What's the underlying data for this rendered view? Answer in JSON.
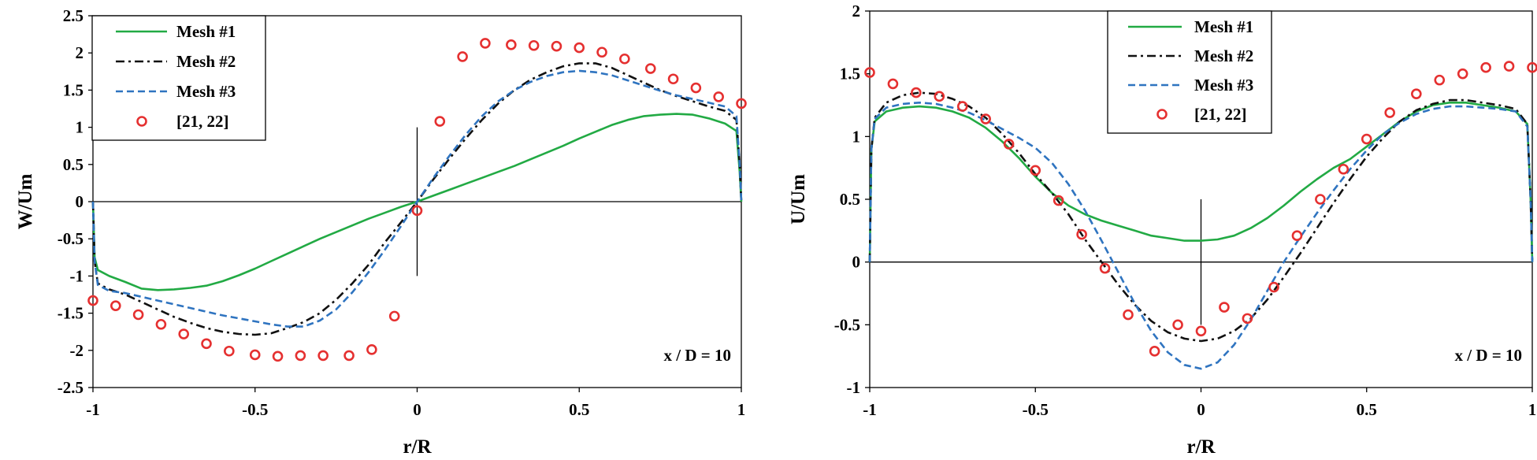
{
  "figure_colors": {
    "mesh1": "#22aa44",
    "mesh2": "#111111",
    "mesh3": "#2f74c0",
    "reference": "#e53030"
  },
  "chart_data": [
    {
      "type": "line",
      "title": "",
      "xlabel": "r/R",
      "ylabel": "W/Um",
      "xlim": [
        -1,
        1
      ],
      "ylim": [
        -2.5,
        2.5
      ],
      "xticks": [
        -1,
        -0.5,
        0,
        0.5,
        1
      ],
      "xtick_labels": [
        "-1",
        "-0.5",
        "0",
        "0.5",
        "1"
      ],
      "yticks": [
        -2.5,
        -2,
        -1.5,
        -1,
        -0.5,
        0,
        0.5,
        1,
        1.5,
        2,
        2.5
      ],
      "ytick_labels": [
        "-2.5",
        "-2",
        "-1.5",
        "-1",
        "-0.5",
        "0",
        "0.5",
        "1",
        "1.5",
        "2",
        "2.5"
      ],
      "legend_position": "top-left",
      "annotation": "x / D = 10",
      "grid": false,
      "series": [
        {
          "name": "Mesh #1",
          "style": "solid",
          "color_key": "mesh1",
          "x": [
            -1.0,
            -0.995,
            -0.985,
            -0.95,
            -0.9,
            -0.85,
            -0.8,
            -0.75,
            -0.7,
            -0.65,
            -0.6,
            -0.55,
            -0.5,
            -0.45,
            -0.4,
            -0.35,
            -0.3,
            -0.25,
            -0.2,
            -0.15,
            -0.1,
            -0.05,
            0.0,
            0.05,
            0.1,
            0.15,
            0.2,
            0.25,
            0.3,
            0.35,
            0.4,
            0.45,
            0.5,
            0.55,
            0.6,
            0.65,
            0.7,
            0.75,
            0.8,
            0.85,
            0.9,
            0.95,
            0.985,
            0.995,
            1.0
          ],
          "y": [
            0.0,
            -0.75,
            -0.92,
            -1.0,
            -1.08,
            -1.17,
            -1.19,
            -1.18,
            -1.16,
            -1.13,
            -1.07,
            -0.99,
            -0.9,
            -0.8,
            -0.7,
            -0.6,
            -0.5,
            -0.41,
            -0.32,
            -0.23,
            -0.15,
            -0.07,
            0.0,
            0.08,
            0.16,
            0.24,
            0.32,
            0.4,
            0.48,
            0.57,
            0.66,
            0.75,
            0.85,
            0.94,
            1.03,
            1.1,
            1.15,
            1.17,
            1.18,
            1.17,
            1.12,
            1.05,
            0.95,
            0.4,
            0.0
          ]
        },
        {
          "name": "Mesh #2",
          "style": "dashdot",
          "color_key": "mesh2",
          "x": [
            -1.0,
            -0.995,
            -0.985,
            -0.95,
            -0.9,
            -0.85,
            -0.8,
            -0.75,
            -0.7,
            -0.65,
            -0.6,
            -0.55,
            -0.5,
            -0.45,
            -0.4,
            -0.35,
            -0.3,
            -0.25,
            -0.2,
            -0.15,
            -0.1,
            -0.05,
            0.0,
            0.05,
            0.1,
            0.15,
            0.2,
            0.25,
            0.3,
            0.35,
            0.4,
            0.45,
            0.5,
            0.55,
            0.6,
            0.65,
            0.7,
            0.75,
            0.8,
            0.85,
            0.9,
            0.95,
            0.985,
            0.995,
            1.0
          ],
          "y": [
            0.0,
            -0.8,
            -1.1,
            -1.18,
            -1.25,
            -1.35,
            -1.45,
            -1.55,
            -1.63,
            -1.7,
            -1.75,
            -1.78,
            -1.79,
            -1.77,
            -1.7,
            -1.62,
            -1.5,
            -1.32,
            -1.1,
            -0.85,
            -0.55,
            -0.28,
            0.0,
            0.3,
            0.58,
            0.85,
            1.1,
            1.32,
            1.5,
            1.64,
            1.74,
            1.82,
            1.86,
            1.86,
            1.8,
            1.7,
            1.6,
            1.5,
            1.42,
            1.35,
            1.28,
            1.22,
            1.1,
            0.5,
            0.0
          ]
        },
        {
          "name": "Mesh #3",
          "style": "dashed",
          "color_key": "mesh3",
          "x": [
            -1.0,
            -0.995,
            -0.985,
            -0.95,
            -0.9,
            -0.85,
            -0.8,
            -0.75,
            -0.7,
            -0.65,
            -0.6,
            -0.55,
            -0.5,
            -0.45,
            -0.4,
            -0.35,
            -0.3,
            -0.25,
            -0.2,
            -0.15,
            -0.1,
            -0.05,
            0.0,
            0.05,
            0.1,
            0.15,
            0.2,
            0.25,
            0.3,
            0.35,
            0.4,
            0.45,
            0.5,
            0.55,
            0.6,
            0.65,
            0.7,
            0.75,
            0.8,
            0.85,
            0.9,
            0.95,
            0.985,
            0.995,
            1.0
          ],
          "y": [
            0.0,
            -0.8,
            -1.12,
            -1.2,
            -1.23,
            -1.28,
            -1.33,
            -1.38,
            -1.43,
            -1.48,
            -1.53,
            -1.57,
            -1.61,
            -1.65,
            -1.68,
            -1.68,
            -1.6,
            -1.45,
            -1.22,
            -0.95,
            -0.65,
            -0.33,
            0.0,
            0.32,
            0.62,
            0.9,
            1.15,
            1.35,
            1.5,
            1.61,
            1.69,
            1.74,
            1.76,
            1.74,
            1.7,
            1.63,
            1.56,
            1.49,
            1.43,
            1.38,
            1.33,
            1.28,
            1.15,
            0.5,
            0.0
          ]
        },
        {
          "name": "[21, 22]",
          "style": "markers",
          "color_key": "reference",
          "x": [
            -1.0,
            -0.93,
            -0.86,
            -0.79,
            -0.72,
            -0.65,
            -0.58,
            -0.5,
            -0.43,
            -0.36,
            -0.29,
            -0.21,
            -0.14,
            -0.07,
            0.0,
            0.07,
            0.14,
            0.21,
            0.29,
            0.36,
            0.43,
            0.5,
            0.57,
            0.64,
            0.72,
            0.79,
            0.86,
            0.93,
            1.0
          ],
          "y": [
            -1.33,
            -1.4,
            -1.52,
            -1.65,
            -1.78,
            -1.91,
            -2.01,
            -2.06,
            -2.08,
            -2.07,
            -2.07,
            -2.07,
            -1.99,
            -1.54,
            -0.12,
            1.08,
            1.95,
            2.13,
            2.11,
            2.1,
            2.09,
            2.07,
            2.01,
            1.92,
            1.79,
            1.65,
            1.53,
            1.41,
            1.32
          ]
        }
      ]
    },
    {
      "type": "line",
      "title": "",
      "xlabel": "r/R",
      "ylabel": "U/Um",
      "xlim": [
        -1,
        1
      ],
      "ylim": [
        -1,
        2
      ],
      "xticks": [
        -1,
        -0.5,
        0,
        0.5,
        1
      ],
      "xtick_labels": [
        "-1",
        "-0.5",
        "0",
        "0.5",
        "1"
      ],
      "yticks": [
        -1,
        -0.5,
        0,
        0.5,
        1,
        1.5,
        2
      ],
      "ytick_labels": [
        "-1",
        "-0.5",
        "0",
        "0.5",
        "1",
        "1.5",
        "2"
      ],
      "legend_position": "top-center",
      "annotation": "x / D = 10",
      "grid": false,
      "series": [
        {
          "name": "Mesh #1",
          "style": "solid",
          "color_key": "mesh1",
          "x": [
            -1.0,
            -0.995,
            -0.985,
            -0.95,
            -0.9,
            -0.85,
            -0.8,
            -0.75,
            -0.7,
            -0.65,
            -0.6,
            -0.55,
            -0.5,
            -0.45,
            -0.4,
            -0.35,
            -0.3,
            -0.25,
            -0.2,
            -0.15,
            -0.1,
            -0.05,
            0.0,
            0.05,
            0.1,
            0.15,
            0.2,
            0.25,
            0.3,
            0.35,
            0.4,
            0.45,
            0.5,
            0.55,
            0.6,
            0.65,
            0.7,
            0.75,
            0.8,
            0.85,
            0.9,
            0.95,
            0.985,
            0.995,
            1.0
          ],
          "y": [
            0.0,
            0.9,
            1.12,
            1.2,
            1.23,
            1.24,
            1.23,
            1.2,
            1.15,
            1.07,
            0.96,
            0.83,
            0.68,
            0.55,
            0.45,
            0.38,
            0.33,
            0.29,
            0.25,
            0.21,
            0.19,
            0.17,
            0.17,
            0.18,
            0.21,
            0.27,
            0.35,
            0.45,
            0.56,
            0.66,
            0.75,
            0.82,
            0.92,
            1.02,
            1.12,
            1.2,
            1.25,
            1.27,
            1.27,
            1.25,
            1.23,
            1.2,
            1.1,
            0.5,
            0.0
          ]
        },
        {
          "name": "Mesh #2",
          "style": "dashdot",
          "color_key": "mesh2",
          "x": [
            -1.0,
            -0.995,
            -0.985,
            -0.95,
            -0.9,
            -0.85,
            -0.8,
            -0.75,
            -0.7,
            -0.65,
            -0.6,
            -0.55,
            -0.5,
            -0.45,
            -0.4,
            -0.35,
            -0.3,
            -0.25,
            -0.2,
            -0.15,
            -0.1,
            -0.05,
            0.0,
            0.05,
            0.1,
            0.15,
            0.2,
            0.25,
            0.3,
            0.35,
            0.4,
            0.45,
            0.5,
            0.55,
            0.6,
            0.65,
            0.7,
            0.75,
            0.8,
            0.85,
            0.9,
            0.95,
            0.985,
            0.995,
            1.0
          ],
          "y": [
            0.0,
            0.9,
            1.15,
            1.27,
            1.33,
            1.35,
            1.34,
            1.3,
            1.24,
            1.15,
            1.02,
            0.87,
            0.7,
            0.55,
            0.38,
            0.18,
            0.0,
            -0.18,
            -0.34,
            -0.47,
            -0.56,
            -0.61,
            -0.63,
            -0.61,
            -0.55,
            -0.45,
            -0.3,
            -0.12,
            0.07,
            0.27,
            0.47,
            0.66,
            0.84,
            0.99,
            1.12,
            1.21,
            1.26,
            1.29,
            1.29,
            1.27,
            1.25,
            1.22,
            1.1,
            0.5,
            0.0
          ]
        },
        {
          "name": "Mesh #3",
          "style": "dashed",
          "color_key": "mesh3",
          "x": [
            -1.0,
            -0.995,
            -0.985,
            -0.95,
            -0.9,
            -0.85,
            -0.8,
            -0.75,
            -0.7,
            -0.65,
            -0.6,
            -0.55,
            -0.5,
            -0.45,
            -0.4,
            -0.35,
            -0.3,
            -0.25,
            -0.2,
            -0.15,
            -0.1,
            -0.05,
            0.0,
            0.05,
            0.1,
            0.15,
            0.2,
            0.25,
            0.3,
            0.35,
            0.4,
            0.45,
            0.5,
            0.55,
            0.6,
            0.65,
            0.7,
            0.75,
            0.8,
            0.85,
            0.9,
            0.95,
            0.985,
            0.995,
            1.0
          ],
          "y": [
            0.0,
            0.9,
            1.14,
            1.23,
            1.26,
            1.27,
            1.26,
            1.23,
            1.19,
            1.13,
            1.06,
            0.99,
            0.91,
            0.79,
            0.62,
            0.41,
            0.17,
            -0.08,
            -0.33,
            -0.55,
            -0.72,
            -0.82,
            -0.85,
            -0.8,
            -0.66,
            -0.46,
            -0.23,
            0.0,
            0.2,
            0.39,
            0.57,
            0.74,
            0.89,
            1.02,
            1.11,
            1.18,
            1.22,
            1.24,
            1.24,
            1.23,
            1.22,
            1.2,
            1.08,
            0.5,
            0.0
          ]
        },
        {
          "name": "[21, 22]",
          "style": "markers",
          "color_key": "reference",
          "x": [
            -1.0,
            -0.93,
            -0.86,
            -0.79,
            -0.72,
            -0.65,
            -0.58,
            -0.5,
            -0.43,
            -0.36,
            -0.29,
            -0.22,
            -0.14,
            -0.07,
            0.0,
            0.07,
            0.14,
            0.22,
            0.29,
            0.36,
            0.43,
            0.5,
            0.57,
            0.65,
            0.72,
            0.79,
            0.86,
            0.93,
            1.0
          ],
          "y": [
            1.51,
            1.42,
            1.35,
            1.32,
            1.24,
            1.14,
            0.94,
            0.73,
            0.49,
            0.22,
            -0.05,
            -0.42,
            -0.71,
            -0.5,
            -0.55,
            -0.36,
            -0.45,
            -0.2,
            0.21,
            0.5,
            0.74,
            0.98,
            1.19,
            1.34,
            1.45,
            1.5,
            1.55,
            1.56,
            1.55
          ]
        }
      ]
    }
  ]
}
